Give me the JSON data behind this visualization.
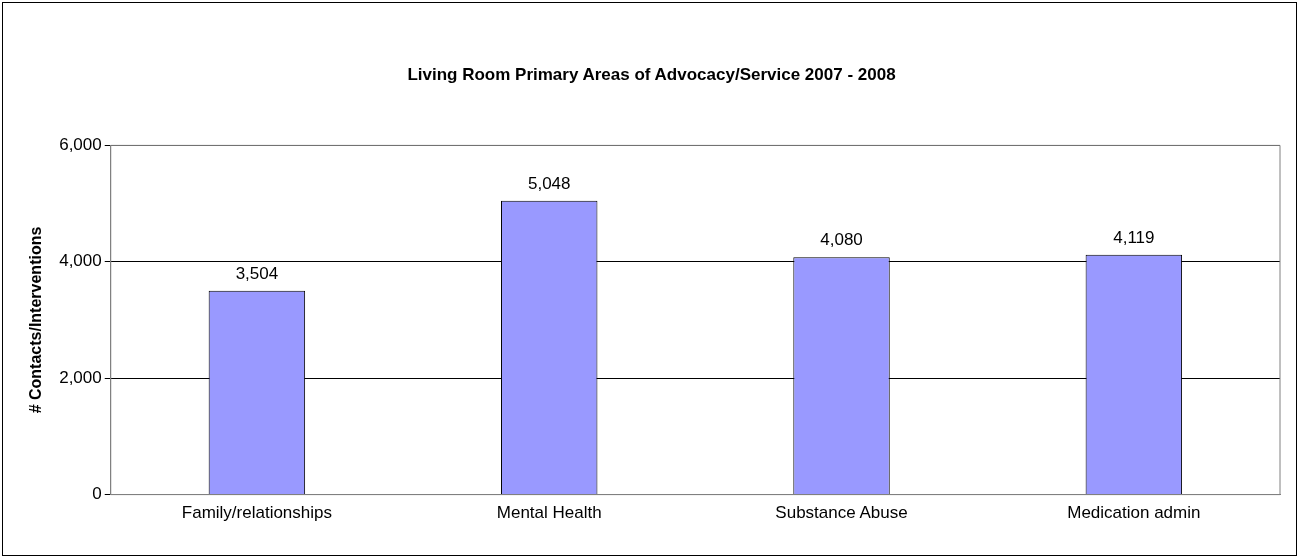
{
  "chart_data": {
    "type": "bar",
    "title": "Living Room Primary Areas of Advocacy/Service 2007 - 2008",
    "ylabel": "# Contacts/Interventions",
    "categories": [
      "Family/relationships",
      "Mental Health",
      "Substance Abuse",
      "Medication admin"
    ],
    "values": [
      3504,
      5048,
      4080,
      4119
    ],
    "color": "#9999ff",
    "ylim": [
      0,
      6000
    ],
    "yticks": [
      {
        "value": 0,
        "label": "0"
      },
      {
        "value": 2000,
        "label": "2,000"
      },
      {
        "value": 4000,
        "label": "4,000"
      },
      {
        "value": 6000,
        "label": "6,000"
      }
    ],
    "value_labels": [
      "3,504",
      "5,048",
      "4,080",
      "4,119"
    ],
    "grid": "y",
    "legend": false
  }
}
